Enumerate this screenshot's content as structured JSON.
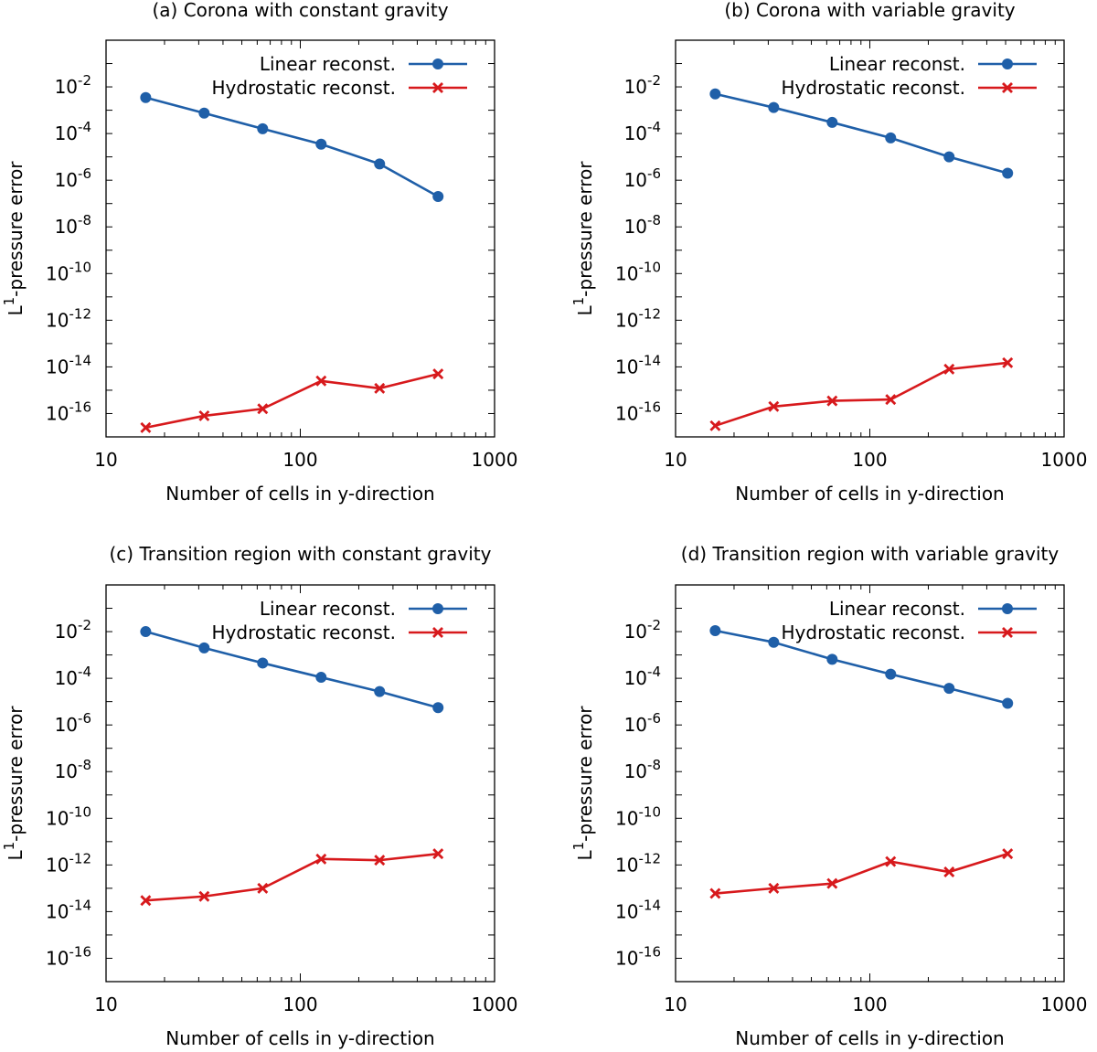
{
  "chart_data": [
    {
      "type": "line",
      "title": "(a) Corona with constant gravity",
      "xlabel": "Number of cells in y-direction",
      "ylabel": "L1-pressure error",
      "ylabel_main": "L",
      "ylabel_sup": "1",
      "ylabel_rest": "-pressure error",
      "xscale": "log",
      "yscale": "log",
      "xlim": [
        10,
        1000
      ],
      "ylim": [
        1e-17,
        1.0
      ],
      "xticks": [
        10,
        100,
        1000
      ],
      "xtick_labels": [
        "10",
        "100",
        "1000"
      ],
      "yticks_exp": [
        -2,
        -4,
        -6,
        -8,
        -10,
        -12,
        -14,
        -16
      ],
      "legend_position": "top-right",
      "series": [
        {
          "name": "Linear reconst.",
          "color": "#1f5fa8",
          "marker": "circle",
          "x": [
            16,
            32,
            64,
            128,
            256,
            512
          ],
          "y": [
            0.0035,
            0.00075,
            0.00016,
            3.5e-05,
            5e-06,
            2e-07
          ]
        },
        {
          "name": "Hydrostatic reconst.",
          "color": "#d7191c",
          "marker": "cross",
          "x": [
            16,
            32,
            64,
            128,
            256,
            512
          ],
          "y": [
            2.5e-17,
            8e-17,
            1.6e-16,
            2.5e-15,
            1.2e-15,
            5e-15
          ]
        }
      ]
    },
    {
      "type": "line",
      "title": "(b) Corona with variable gravity",
      "xlabel": "Number of cells in y-direction",
      "ylabel": "L1-pressure error",
      "ylabel_main": "L",
      "ylabel_sup": "1",
      "ylabel_rest": "-pressure error",
      "xscale": "log",
      "yscale": "log",
      "xlim": [
        10,
        1000
      ],
      "ylim": [
        1e-17,
        1.0
      ],
      "xticks": [
        10,
        100,
        1000
      ],
      "xtick_labels": [
        "10",
        "100",
        "1000"
      ],
      "yticks_exp": [
        -2,
        -4,
        -6,
        -8,
        -10,
        -12,
        -14,
        -16
      ],
      "legend_position": "top-right",
      "series": [
        {
          "name": "Linear reconst.",
          "color": "#1f5fa8",
          "marker": "circle",
          "x": [
            16,
            32,
            64,
            128,
            256,
            512
          ],
          "y": [
            0.005,
            0.0013,
            0.0003,
            6.5e-05,
            1e-05,
            2e-06
          ]
        },
        {
          "name": "Hydrostatic reconst.",
          "color": "#d7191c",
          "marker": "cross",
          "x": [
            16,
            32,
            64,
            128,
            256,
            512
          ],
          "y": [
            3e-17,
            2e-16,
            3.5e-16,
            4e-16,
            8e-15,
            1.5e-14
          ]
        }
      ]
    },
    {
      "type": "line",
      "title": "(c) Transition region with constant gravity",
      "xlabel": "Number of cells in y-direction",
      "ylabel": "L1-pressure error",
      "ylabel_main": "L",
      "ylabel_sup": "1",
      "ylabel_rest": "-pressure error",
      "xscale": "log",
      "yscale": "log",
      "xlim": [
        10,
        1000
      ],
      "ylim": [
        1e-17,
        1.0
      ],
      "xticks": [
        10,
        100,
        1000
      ],
      "xtick_labels": [
        "10",
        "100",
        "1000"
      ],
      "yticks_exp": [
        -2,
        -4,
        -6,
        -8,
        -10,
        -12,
        -14,
        -16
      ],
      "legend_position": "top-right",
      "series": [
        {
          "name": "Linear reconst.",
          "color": "#1f5fa8",
          "marker": "circle",
          "x": [
            16,
            32,
            64,
            128,
            256,
            512
          ],
          "y": [
            0.01,
            0.002,
            0.00045,
            0.00011,
            2.7e-05,
            5.5e-06
          ]
        },
        {
          "name": "Hydrostatic reconst.",
          "color": "#d7191c",
          "marker": "cross",
          "x": [
            16,
            32,
            64,
            128,
            256,
            512
          ],
          "y": [
            3e-14,
            4.5e-14,
            1e-13,
            1.8e-12,
            1.6e-12,
            3e-12
          ]
        }
      ]
    },
    {
      "type": "line",
      "title": "(d) Transition region with variable gravity",
      "xlabel": "Number of cells in y-direction",
      "ylabel": "L1-pressure error",
      "ylabel_main": "L",
      "ylabel_sup": "1",
      "ylabel_rest": "-pressure error",
      "xscale": "log",
      "yscale": "log",
      "xlim": [
        10,
        1000
      ],
      "ylim": [
        1e-17,
        1.0
      ],
      "xticks": [
        10,
        100,
        1000
      ],
      "xtick_labels": [
        "10",
        "100",
        "1000"
      ],
      "yticks_exp": [
        -2,
        -4,
        -6,
        -8,
        -10,
        -12,
        -14,
        -16
      ],
      "legend_position": "top-right",
      "series": [
        {
          "name": "Linear reconst.",
          "color": "#1f5fa8",
          "marker": "circle",
          "x": [
            16,
            32,
            64,
            128,
            256,
            512
          ],
          "y": [
            0.011,
            0.0035,
            0.00065,
            0.00015,
            3.7e-05,
            8.5e-06
          ]
        },
        {
          "name": "Hydrostatic reconst.",
          "color": "#d7191c",
          "marker": "cross",
          "x": [
            16,
            32,
            64,
            128,
            256,
            512
          ],
          "y": [
            6e-14,
            1e-13,
            1.6e-13,
            1.4e-12,
            5e-13,
            3e-12
          ]
        }
      ]
    }
  ]
}
